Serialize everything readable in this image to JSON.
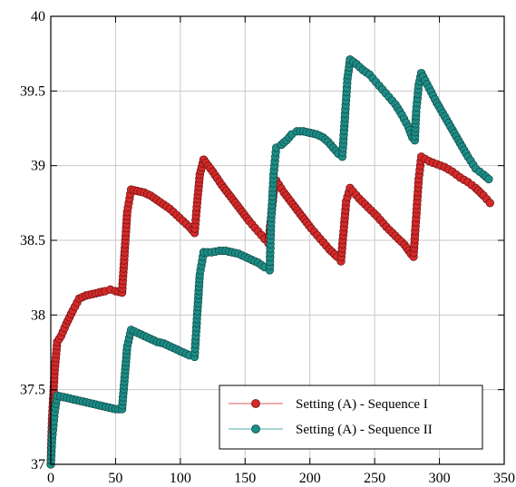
{
  "chart_data": {
    "type": "line",
    "title": "",
    "xlabel": "",
    "ylabel": "",
    "xlim": [
      0,
      350
    ],
    "ylim": [
      37,
      40
    ],
    "x_ticks": [
      0,
      50,
      100,
      150,
      200,
      250,
      300,
      350
    ],
    "x_tick_labels": [
      "0",
      "50",
      "100",
      "150",
      "200",
      "250",
      "300",
      "350"
    ],
    "y_ticks": [
      37,
      37.5,
      38,
      38.5,
      39,
      39.5,
      40
    ],
    "y_tick_labels": [
      "37",
      "37.5",
      "38",
      "38.5",
      "39",
      "39.5",
      "40"
    ],
    "grid": true,
    "legend_position": "bottom-right",
    "series": [
      {
        "name": "Setting (A) - Sequence I",
        "color": "#d42a2a",
        "segments": [
          [
            [
              0,
              37.0
            ],
            [
              1,
              37.3
            ],
            [
              3,
              37.63
            ],
            [
              5,
              37.82
            ],
            [
              8,
              37.86
            ],
            [
              12,
              37.94
            ],
            [
              17,
              38.03
            ],
            [
              22,
              38.11
            ],
            [
              27,
              38.13
            ],
            [
              32,
              38.14
            ],
            [
              37,
              38.15
            ],
            [
              42,
              38.16
            ],
            [
              46,
              38.17
            ],
            [
              50,
              38.16
            ],
            [
              55,
              38.15
            ],
            [
              57,
              38.42
            ],
            [
              59,
              38.69
            ],
            [
              62,
              38.84
            ],
            [
              67,
              38.83
            ],
            [
              72,
              38.82
            ],
            [
              77,
              38.8
            ],
            [
              82,
              38.77
            ],
            [
              87,
              38.74
            ],
            [
              92,
              38.71
            ],
            [
              97,
              38.67
            ],
            [
              102,
              38.63
            ],
            [
              107,
              38.59
            ],
            [
              111,
              38.55
            ],
            [
              113,
              38.75
            ],
            [
              115,
              38.94
            ],
            [
              118,
              39.04
            ]
          ],
          [
            [
              118,
              39.04
            ],
            [
              125,
              38.96
            ],
            [
              132,
              38.87
            ],
            [
              139,
              38.79
            ],
            [
              146,
              38.71
            ],
            [
              153,
              38.63
            ],
            [
              160,
              38.56
            ],
            [
              165,
              38.51
            ],
            [
              168,
              38.48
            ],
            [
              170,
              38.65
            ],
            [
              172,
              38.82
            ],
            [
              174,
              38.9
            ],
            [
              180,
              38.82
            ],
            [
              187,
              38.74
            ],
            [
              194,
              38.66
            ],
            [
              201,
              38.58
            ],
            [
              208,
              38.51
            ],
            [
              215,
              38.44
            ],
            [
              221,
              38.39
            ],
            [
              224,
              38.36
            ],
            [
              226,
              38.56
            ],
            [
              228,
              38.76
            ],
            [
              231,
              38.85
            ]
          ],
          [
            [
              231,
              38.85
            ],
            [
              238,
              38.78
            ],
            [
              245,
              38.72
            ],
            [
              252,
              38.66
            ],
            [
              259,
              38.59
            ],
            [
              266,
              38.53
            ],
            [
              273,
              38.47
            ],
            [
              278,
              38.41
            ],
            [
              280,
              38.39
            ],
            [
              282,
              38.65
            ],
            [
              284,
              38.91
            ],
            [
              286,
              39.06
            ],
            [
              292,
              39.03
            ],
            [
              298,
              39.01
            ],
            [
              304,
              38.99
            ],
            [
              310,
              38.96
            ],
            [
              316,
              38.92
            ],
            [
              322,
              38.89
            ],
            [
              328,
              38.85
            ],
            [
              334,
              38.8
            ],
            [
              339,
              38.75
            ]
          ]
        ]
      },
      {
        "name": "Setting (A) - Sequence II",
        "color": "#1e8c86",
        "segments": [
          [
            [
              0,
              37.0
            ],
            [
              1,
              37.17
            ],
            [
              3,
              37.35
            ],
            [
              5,
              37.46
            ],
            [
              10,
              37.45
            ],
            [
              15,
              37.44
            ],
            [
              20,
              37.43
            ],
            [
              25,
              37.42
            ],
            [
              30,
              37.41
            ],
            [
              35,
              37.4
            ],
            [
              40,
              37.39
            ],
            [
              45,
              37.38
            ],
            [
              50,
              37.37
            ],
            [
              55,
              37.37
            ],
            [
              57,
              37.58
            ],
            [
              59,
              37.79
            ],
            [
              62,
              37.9
            ],
            [
              67,
              37.88
            ],
            [
              72,
              37.86
            ],
            [
              77,
              37.84
            ],
            [
              82,
              37.82
            ],
            [
              87,
              37.81
            ],
            [
              92,
              37.79
            ],
            [
              97,
              37.77
            ],
            [
              102,
              37.75
            ],
            [
              107,
              37.73
            ],
            [
              111,
              37.72
            ],
            [
              113,
              38.0
            ],
            [
              115,
              38.27
            ],
            [
              118,
              38.42
            ]
          ],
          [
            [
              118,
              38.42
            ],
            [
              124,
              38.42
            ],
            [
              130,
              38.43
            ],
            [
              135,
              38.43
            ],
            [
              140,
              38.42
            ],
            [
              145,
              38.41
            ],
            [
              150,
              38.39
            ],
            [
              155,
              38.37
            ],
            [
              160,
              38.35
            ],
            [
              165,
              38.32
            ],
            [
              169,
              38.3
            ],
            [
              170,
              38.62
            ],
            [
              172,
              38.94
            ],
            [
              174,
              39.12
            ],
            [
              178,
              39.14
            ],
            [
              182,
              39.17
            ],
            [
              186,
              39.21
            ],
            [
              190,
              39.23
            ],
            [
              195,
              39.23
            ],
            [
              200,
              39.22
            ],
            [
              205,
              39.21
            ],
            [
              210,
              39.19
            ],
            [
              214,
              39.16
            ],
            [
              218,
              39.12
            ],
            [
              222,
              39.08
            ],
            [
              225,
              39.06
            ],
            [
              227,
              39.32
            ],
            [
              229,
              39.58
            ],
            [
              231,
              39.71
            ]
          ],
          [
            [
              231,
              39.71
            ],
            [
              236,
              39.68
            ],
            [
              241,
              39.64
            ],
            [
              246,
              39.61
            ],
            [
              251,
              39.56
            ],
            [
              256,
              39.51
            ],
            [
              261,
              39.46
            ],
            [
              266,
              39.41
            ],
            [
              271,
              39.34
            ],
            [
              276,
              39.26
            ],
            [
              279,
              39.19
            ],
            [
              281,
              39.17
            ],
            [
              282,
              39.36
            ],
            [
              284,
              39.54
            ],
            [
              286,
              39.62
            ],
            [
              292,
              39.52
            ],
            [
              298,
              39.42
            ],
            [
              304,
              39.33
            ],
            [
              310,
              39.24
            ],
            [
              316,
              39.15
            ],
            [
              322,
              39.06
            ],
            [
              328,
              38.98
            ],
            [
              334,
              38.94
            ],
            [
              338,
              38.91
            ]
          ]
        ]
      }
    ]
  }
}
